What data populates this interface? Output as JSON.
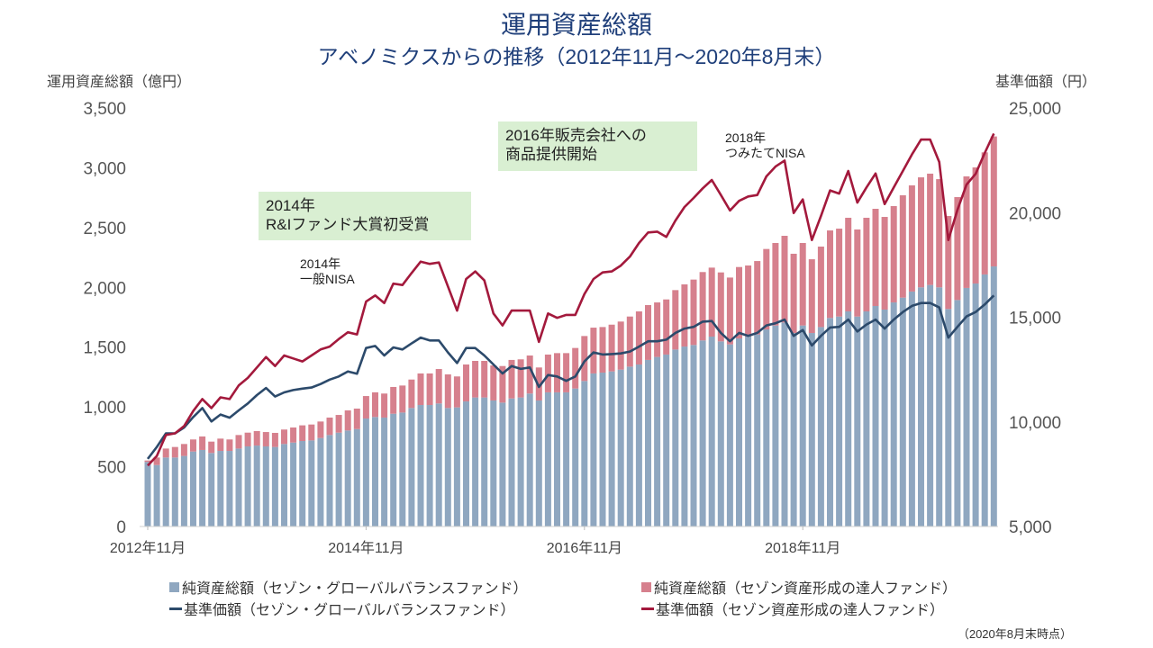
{
  "chart_data": {
    "type": "bar+line",
    "title": "運用資産総額",
    "subtitle": "アベノミクスからの推移（2012年11月～2020年8月末）",
    "ylabel_left": "運用資産総額（億円）",
    "ylabel_right": "基準価額（円）",
    "ylim_left": [
      0,
      3500
    ],
    "ylim_right": [
      5000,
      25000
    ],
    "yticks_left": [
      "0",
      "500",
      "1,000",
      "1,500",
      "2,000",
      "2,500",
      "3,000",
      "3,500"
    ],
    "yticks_right": [
      "5,000",
      "10,000",
      "15,000",
      "20,000",
      "25,000"
    ],
    "xticks": [
      "2012年11月",
      "2014年11月",
      "2016年11月",
      "2018年11月"
    ],
    "grid": false,
    "legend_position": "bottom",
    "categories": [
      "2012年11月",
      "2012年12月",
      "2013年1月",
      "2013年2月",
      "2013年3月",
      "2013年4月",
      "2013年5月",
      "2013年6月",
      "2013年7月",
      "2013年8月",
      "2013年9月",
      "2013年10月",
      "2013年11月",
      "2013年12月",
      "2014年1月",
      "2014年2月",
      "2014年3月",
      "2014年4月",
      "2014年5月",
      "2014年6月",
      "2014年7月",
      "2014年8月",
      "2014年9月",
      "2014年10月",
      "2014年11月",
      "2014年12月",
      "2015年1月",
      "2015年2月",
      "2015年3月",
      "2015年4月",
      "2015年5月",
      "2015年6月",
      "2015年7月",
      "2015年8月",
      "2015年9月",
      "2015年10月",
      "2015年11月",
      "2015年12月",
      "2016年1月",
      "2016年2月",
      "2016年3月",
      "2016年4月",
      "2016年5月",
      "2016年6月",
      "2016年7月",
      "2016年8月",
      "2016年9月",
      "2016年10月",
      "2016年11月",
      "2016年12月",
      "2017年1月",
      "2017年2月",
      "2017年3月",
      "2017年4月",
      "2017年5月",
      "2017年6月",
      "2017年7月",
      "2017年8月",
      "2017年9月",
      "2017年10月",
      "2017年11月",
      "2017年12月",
      "2018年1月",
      "2018年2月",
      "2018年3月",
      "2018年4月",
      "2018年5月",
      "2018年6月",
      "2018年7月",
      "2018年8月",
      "2018年9月",
      "2018年10月",
      "2018年11月",
      "2018年12月",
      "2019年1月",
      "2019年2月",
      "2019年3月",
      "2019年4月",
      "2019年5月",
      "2019年6月",
      "2019年7月",
      "2019年8月",
      "2019年9月",
      "2019年10月",
      "2019年11月",
      "2019年12月",
      "2020年1月",
      "2020年2月",
      "2020年3月",
      "2020年4月",
      "2020年5月",
      "2020年6月",
      "2020年7月",
      "2020年8月"
    ],
    "series": [
      {
        "name": "純資産総額（セゾン・グローバルバランスファンド）",
        "kind": "bar",
        "axis": "left",
        "color": "#8fa7c0",
        "values": [
          540,
          514,
          577,
          577,
          590,
          627,
          640,
          615,
          632,
          632,
          652,
          670,
          677,
          670,
          665,
          690,
          702,
          715,
          720,
          740,
          765,
          785,
          803,
          815,
          903,
          916,
          911,
          943,
          953,
          991,
          1016,
          1016,
          1029,
          991,
          996,
          1046,
          1079,
          1079,
          1054,
          1036,
          1071,
          1079,
          1112,
          1054,
          1122,
          1122,
          1122,
          1154,
          1217,
          1280,
          1287,
          1297,
          1312,
          1337,
          1355,
          1393,
          1418,
          1438,
          1480,
          1505,
          1518,
          1556,
          1588,
          1548,
          1523,
          1573,
          1588,
          1606,
          1648,
          1681,
          1706,
          1618,
          1681,
          1618,
          1668,
          1744,
          1756,
          1799,
          1756,
          1799,
          1844,
          1814,
          1874,
          1914,
          1965,
          2000,
          2020,
          2000,
          1819,
          1894,
          1995,
          2032,
          2108,
          2175
        ]
      },
      {
        "name": "純資産総額（セゾン資産形成の達人ファンド）",
        "kind": "bar",
        "axis": "left",
        "color": "#d6808d",
        "values": [
          12,
          63,
          75,
          88,
          100,
          101,
          113,
          95,
          103,
          96,
          113,
          115,
          121,
          120,
          118,
          121,
          126,
          131,
          133,
          138,
          146,
          148,
          168,
          171,
          188,
          206,
          201,
          224,
          226,
          238,
          264,
          264,
          288,
          281,
          259,
          309,
          306,
          306,
          293,
          306,
          322,
          319,
          318,
          276,
          316,
          328,
          328,
          339,
          376,
          383,
          381,
          391,
          402,
          419,
          444,
          459,
          456,
          461,
          497,
          520,
          547,
          572,
          577,
          577,
          559,
          597,
          595,
          614,
          673,
          690,
          725,
          663,
          690,
          617,
          673,
          732,
          735,
          783,
          728,
          783,
          813,
          775,
          806,
          856,
          888,
          920,
          931,
          905,
          778,
          861,
          933,
          971,
          1021,
          1087
        ]
      },
      {
        "name": "基準価額（セゾン・グローバルバランスファンド）",
        "kind": "line",
        "axis": "right",
        "color": "#2c4a6b",
        "values": [
          8230,
          8800,
          9450,
          9450,
          9730,
          10230,
          10660,
          10020,
          10350,
          10200,
          10550,
          10880,
          11280,
          11620,
          11210,
          11410,
          11520,
          11590,
          11640,
          11810,
          12020,
          12170,
          12410,
          12300,
          13530,
          13630,
          13170,
          13560,
          13460,
          13750,
          14030,
          13890,
          13890,
          13320,
          12810,
          13530,
          13530,
          13170,
          12740,
          12310,
          12670,
          12530,
          12600,
          11670,
          12240,
          12170,
          11960,
          12170,
          12890,
          13320,
          13220,
          13240,
          13270,
          13360,
          13600,
          13850,
          13850,
          13930,
          14250,
          14460,
          14540,
          14790,
          14820,
          14250,
          13850,
          14250,
          14110,
          14250,
          14610,
          14710,
          14890,
          14110,
          14390,
          13650,
          14110,
          14510,
          14540,
          14890,
          14320,
          14650,
          14890,
          14460,
          14890,
          15250,
          15540,
          15680,
          15680,
          15470,
          14030,
          14540,
          15040,
          15250,
          15610,
          16040
        ]
      },
      {
        "name": "基準価額（セゾン資産形成の達人ファンド）",
        "kind": "line",
        "axis": "right",
        "color": "#a3193c",
        "values": [
          7910,
          8370,
          9370,
          9450,
          9800,
          10520,
          11090,
          10660,
          11170,
          11090,
          11740,
          12100,
          12600,
          13100,
          12670,
          13170,
          13030,
          12890,
          13170,
          13460,
          13600,
          13960,
          14280,
          14180,
          15750,
          16040,
          15680,
          16610,
          16540,
          17110,
          17660,
          17550,
          17620,
          16470,
          15320,
          16830,
          17190,
          16760,
          15180,
          14610,
          15320,
          15320,
          15320,
          13820,
          15180,
          14970,
          15110,
          15110,
          16110,
          16830,
          17140,
          17190,
          17470,
          17900,
          18550,
          19050,
          19090,
          18840,
          19620,
          20270,
          20700,
          21160,
          21560,
          20840,
          20100,
          20560,
          20770,
          20840,
          21730,
          22200,
          22490,
          19980,
          20630,
          18690,
          19840,
          21060,
          20910,
          21990,
          20480,
          21200,
          21870,
          20410,
          21200,
          21990,
          22780,
          23490,
          23490,
          22420,
          18690,
          20130,
          21340,
          21850,
          22850,
          23780
        ]
      }
    ],
    "annotations": [
      {
        "text_line1": "2014年",
        "text_line2": "R&Iファンド大賞初受賞",
        "boxed": true
      },
      {
        "text_line1": "2014年",
        "text_line2": "一般NISA",
        "boxed": false
      },
      {
        "text_line1": "2016年販売会社への",
        "text_line2": "商品提供開始",
        "boxed": true
      },
      {
        "text_line1": "2018年",
        "text_line2": "つみたてNISA",
        "boxed": false
      }
    ],
    "footnote": "（2020年8月末時点）"
  }
}
